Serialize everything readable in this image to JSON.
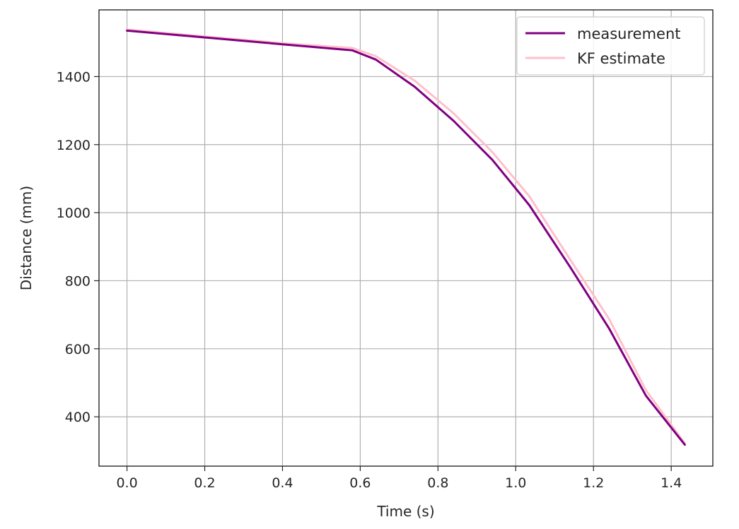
{
  "chart_data": {
    "type": "line",
    "xlabel": "Time (s)",
    "ylabel": "Distance (mm)",
    "xlim": [
      -0.072,
      1.507
    ],
    "ylim": [
      255,
      1596
    ],
    "xticks": [
      0.0,
      0.2,
      0.4,
      0.6,
      0.8,
      1.0,
      1.2,
      1.4
    ],
    "xtick_labels": [
      "0.0",
      "0.2",
      "0.4",
      "0.6",
      "0.8",
      "1.0",
      "1.2",
      "1.4"
    ],
    "yticks": [
      400,
      600,
      800,
      1000,
      1200,
      1400
    ],
    "ytick_labels": [
      "400",
      "600",
      "800",
      "1000",
      "1200",
      "1400"
    ],
    "grid": true,
    "legend_position": "top-right",
    "series": [
      {
        "name": "measurement",
        "color": "#800080",
        "x": [
          0.0,
          0.2,
          0.4,
          0.58,
          0.64,
          0.74,
          0.84,
          0.94,
          1.035,
          1.14,
          1.24,
          1.335,
          1.435
        ],
        "y": [
          1535,
          1515,
          1495,
          1477,
          1450,
          1370,
          1270,
          1155,
          1022,
          840,
          660,
          462,
          318
        ]
      },
      {
        "name": "KF estimate",
        "color": "#ffc0cb",
        "x": [
          0.0,
          0.2,
          0.4,
          0.58,
          0.64,
          0.74,
          0.84,
          0.94,
          1.035,
          1.14,
          1.24,
          1.335,
          1.435
        ],
        "y": [
          1538,
          1518,
          1498,
          1484,
          1460,
          1388,
          1292,
          1178,
          1048,
          862,
          688,
          478,
          322
        ]
      }
    ]
  }
}
